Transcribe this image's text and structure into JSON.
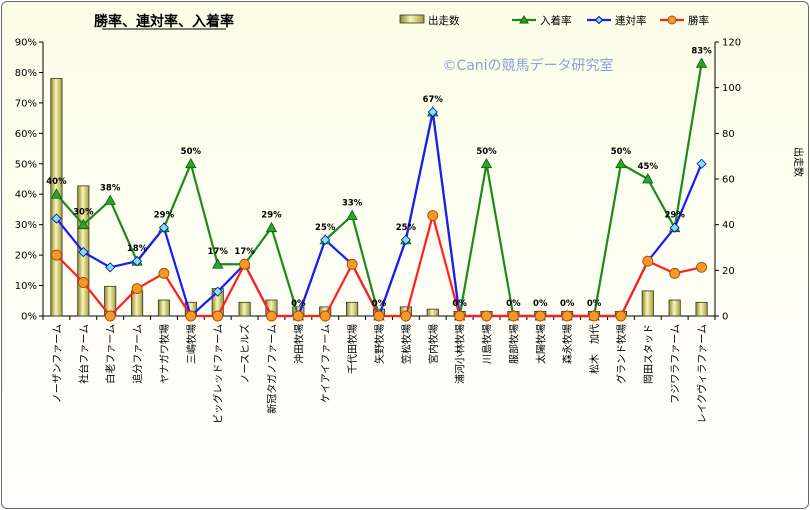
{
  "chart_data": {
    "type": "bar+line",
    "title": "勝率、連対率、入着率",
    "watermark": "©Caniの競馬データ研究室",
    "y_left": {
      "label": "",
      "ticks": [
        "0%",
        "10%",
        "20%",
        "30%",
        "40%",
        "50%",
        "60%",
        "70%",
        "80%",
        "90%"
      ],
      "range": [
        0,
        90
      ]
    },
    "y_right": {
      "label": "出走数",
      "ticks": [
        "0",
        "20",
        "40",
        "60",
        "80",
        "100",
        "120"
      ],
      "range": [
        0,
        120
      ]
    },
    "categories": [
      "ノーザンファーム",
      "社台ファーム",
      "白老ファーム",
      "追分ファーム",
      "ヤナガワ牧場",
      "三嶋牧場",
      "ビッグレッドファーム",
      "ノースヒルズ",
      "新冠タガノファーム",
      "沖田牧場",
      "ケイアイファーム",
      "千代田牧場",
      "矢野牧場",
      "笠松牧場",
      "宮内牧場",
      "浦河小林牧場",
      "川島牧場",
      "服部牧場",
      "太陽牧場",
      "森永牧場",
      "松木　加代",
      "グランド牧場",
      "岡田スタッド",
      "フジワラファーム",
      "レイクヴィラファーム"
    ],
    "series": [
      {
        "name": "出走数",
        "kind": "bar",
        "axis": "right",
        "color": "#f0eca0",
        "values": [
          104,
          57,
          13,
          11,
          7,
          6,
          12,
          6,
          7,
          4,
          4,
          6,
          3,
          4,
          3,
          2,
          2,
          2,
          2,
          2,
          2,
          2,
          11,
          7,
          6
        ]
      },
      {
        "name": "入着率",
        "kind": "line",
        "axis": "left",
        "color": "#1e8a1e",
        "marker": "triangle",
        "values": [
          40,
          30,
          38,
          18,
          29,
          50,
          17,
          17,
          29,
          0,
          25,
          33,
          0,
          25,
          67,
          0,
          50,
          0,
          0,
          0,
          0,
          50,
          45,
          29,
          83
        ]
      },
      {
        "name": "連対率",
        "kind": "line",
        "axis": "left",
        "color": "#1a1aff",
        "marker": "diamond",
        "values": [
          32,
          21,
          16,
          18,
          29,
          0,
          8,
          17,
          0,
          0,
          25,
          17,
          0,
          25,
          67,
          0,
          0,
          0,
          0,
          0,
          0,
          0,
          18,
          29,
          50
        ]
      },
      {
        "name": "勝率",
        "kind": "line",
        "axis": "left",
        "color": "#ff2020",
        "marker": "circle",
        "values": [
          20,
          11,
          0,
          9,
          14,
          0,
          0,
          17,
          0,
          0,
          0,
          17,
          0,
          0,
          33,
          0,
          0,
          0,
          0,
          0,
          0,
          0,
          18,
          14,
          16
        ]
      }
    ],
    "data_labels": [
      "40%",
      "30%",
      "38%",
      "18%",
      "29%",
      "50%",
      "17%",
      "17%",
      "29%",
      "0%",
      "25%",
      "33%",
      "0%",
      "25%",
      "67%",
      "0%",
      "50%",
      "0%",
      "0%",
      "0%",
      "0%",
      "50%",
      "45%",
      "29%",
      "83%"
    ],
    "legend": {
      "position": "top-right",
      "order": [
        "出走数",
        "入着率",
        "連対率",
        "勝率"
      ]
    },
    "grid": false
  }
}
